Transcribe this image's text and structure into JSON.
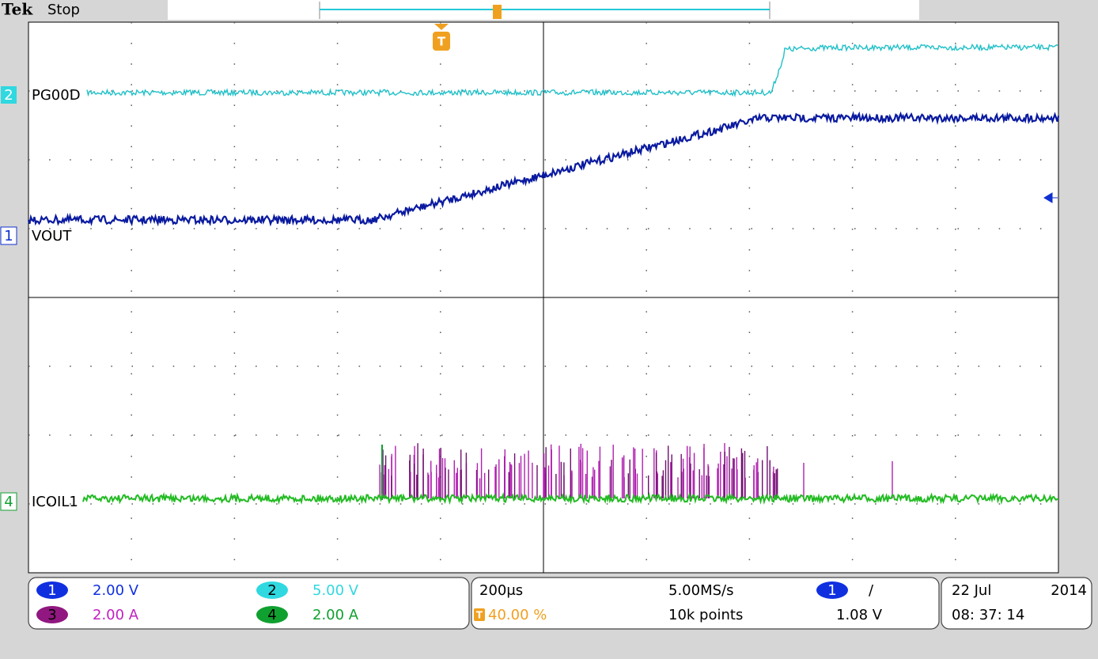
{
  "header": {
    "brand": "Tek",
    "state": "Stop"
  },
  "trigger_marker": "T",
  "waveform_labels": [
    {
      "marker": "2",
      "label": "PG00D"
    },
    {
      "marker": "1",
      "label": "VOUT"
    },
    {
      "marker": "4",
      "label": "ICOIL1"
    }
  ],
  "channel_settings": [
    {
      "channel": "1",
      "scale": "2.00 V"
    },
    {
      "channel": "2",
      "scale": "5.00 V"
    },
    {
      "channel": "3",
      "scale": "2.00 A"
    },
    {
      "channel": "4",
      "scale": "2.00 A"
    }
  ],
  "timebase": {
    "scale": "200μs",
    "sample_rate": "5.00MS/s",
    "trigger_marker": "T",
    "trigger_position": "40.00 %",
    "record_length": "10k points"
  },
  "trigger": {
    "source": "1",
    "slope": "/",
    "level": "1.08 V"
  },
  "datetime": {
    "date": "22 Jul",
    "year": "2014",
    "time": "08: 37: 14"
  }
}
